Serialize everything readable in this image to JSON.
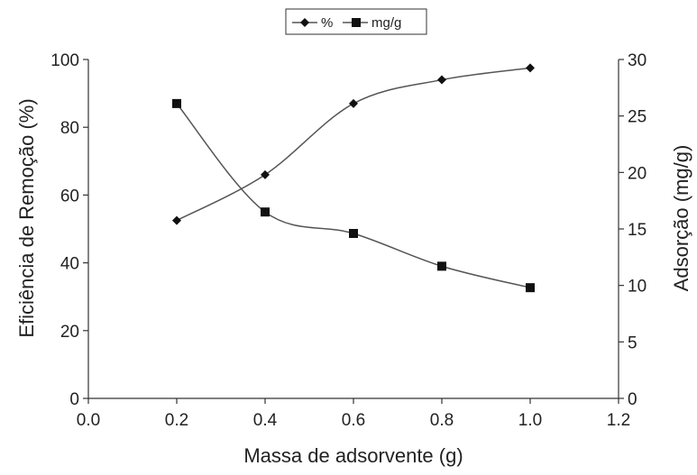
{
  "chart_data": {
    "type": "line",
    "title": "",
    "xlabel": "Massa de adsorvente (g)",
    "ylabel_left": "Eficiência de Remoção (%)",
    "ylabel_right": "Adsorção (mg/g)",
    "xlim": [
      0.0,
      1.2
    ],
    "ylim_left": [
      0,
      100
    ],
    "ylim_right": [
      0,
      30
    ],
    "x_ticks": [
      "0.0",
      "0.2",
      "0.4",
      "0.6",
      "0.8",
      "1.0",
      "1.2"
    ],
    "y_left_ticks": [
      "0",
      "20",
      "40",
      "60",
      "80",
      "100"
    ],
    "y_right_ticks": [
      "0",
      "5",
      "10",
      "15",
      "20",
      "25",
      "30"
    ],
    "grid": false,
    "legend_position": "top-center",
    "x": [
      0.2,
      0.4,
      0.6,
      0.8,
      1.0
    ],
    "series": [
      {
        "name": "%",
        "axis": "left",
        "marker": "diamond",
        "values": [
          52.5,
          66,
          87,
          94,
          97.5
        ]
      },
      {
        "name": "mg/g",
        "axis": "right",
        "marker": "square",
        "values": [
          26.1,
          16.5,
          14.6,
          11.7,
          9.8
        ]
      }
    ]
  }
}
